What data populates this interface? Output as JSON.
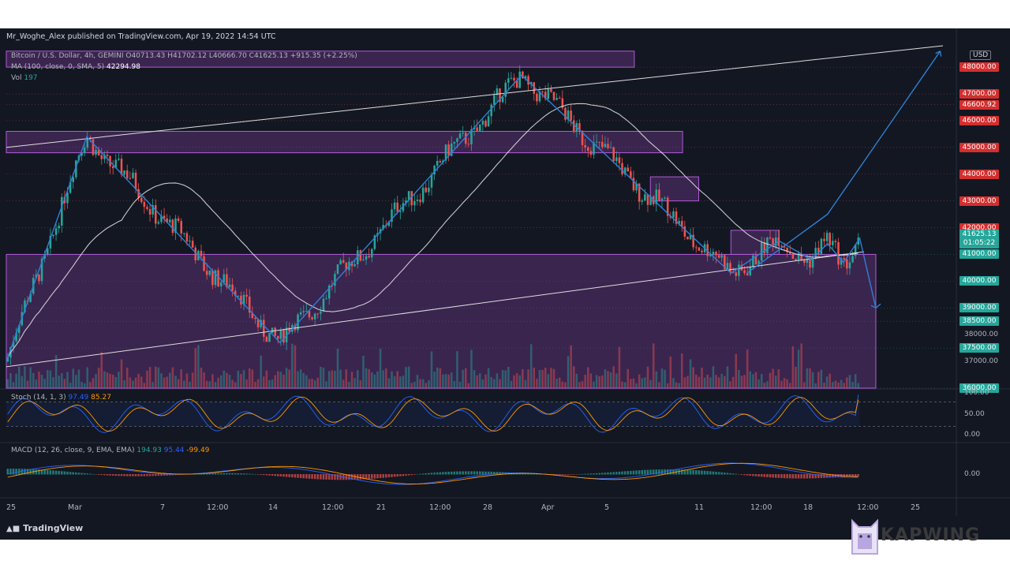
{
  "header": {
    "published": "Mr_Woghe_Alex published on TradingView.com, Apr 19, 2022 14:54 UTC"
  },
  "legend": {
    "symbol": "Bitcoin / U.S. Dollar, 4h, GEMINI",
    "ohlc": "O40713.43 H41702.12 L40666.70 C41625.13 +915.35 (+2.25%)",
    "ma_label": "MA (100, close, 0, SMA, 5)",
    "ma_value": "42294.98",
    "vol_label": "Vol",
    "vol_value": "197"
  },
  "axis": {
    "currency": "USD",
    "current_price": "41625.13",
    "countdown": "01:05:22",
    "price_tags": [
      {
        "text": "48000.00",
        "value": 48000,
        "style": "red"
      },
      {
        "text": "47000.00",
        "value": 47000,
        "style": "red"
      },
      {
        "text": "46600.92",
        "value": 46600.92,
        "style": "red"
      },
      {
        "text": "46000.00",
        "value": 46000,
        "style": "red"
      },
      {
        "text": "45000.00",
        "value": 45000,
        "style": "red"
      },
      {
        "text": "44000.00",
        "value": 44000,
        "style": "red"
      },
      {
        "text": "43000.00",
        "value": 43000,
        "style": "red"
      },
      {
        "text": "42000.00",
        "value": 42000,
        "style": "red"
      },
      {
        "text": "41000.00",
        "value": 41000,
        "style": "green"
      },
      {
        "text": "40000.00",
        "value": 40000,
        "style": "green"
      },
      {
        "text": "39000.00",
        "value": 39000,
        "style": "green"
      },
      {
        "text": "38500.00",
        "value": 38500,
        "style": "green"
      },
      {
        "text": "37500.00",
        "value": 37500,
        "style": "green"
      },
      {
        "text": "36000.00",
        "value": 36000,
        "style": "green"
      }
    ],
    "plain_labels": [
      {
        "text": "38000.00",
        "value": 38000
      },
      {
        "text": "37000.00",
        "value": 37000
      }
    ],
    "time_labels": [
      "25",
      "Mar",
      "7",
      "12:00",
      "14",
      "12:00",
      "21",
      "12:00",
      "28",
      "Apr",
      "5",
      "11",
      "12:00",
      "18",
      "12:00",
      "25"
    ]
  },
  "stoch": {
    "label": "Stoch (14, 1, 3)",
    "k": "97.49",
    "d": "85.27",
    "scale": [
      "100.00",
      "50.00",
      "0.00"
    ]
  },
  "macd": {
    "label": "MACD (12, 26, close, 9, EMA, EMA)",
    "hist": "194.93",
    "macd": "95.44",
    "signal": "-99.49",
    "scale": [
      "0.00"
    ]
  },
  "footer": {
    "logo": "TradingView",
    "watermark": "KAPWING"
  },
  "colors": {
    "background": "#131722",
    "up": "#26a69a",
    "down": "#ef5350",
    "zone": "#8e44ad",
    "zigzag": "#2f7fd4",
    "ma": "#e8e8e8"
  },
  "chart_data": {
    "type": "candlestick",
    "symbol": "Bitcoin / U.S. Dollar",
    "interval": "4h",
    "exchange": "GEMINI",
    "ylim": [
      36000,
      48800
    ],
    "x_range": [
      "Feb 25",
      "Apr 25"
    ],
    "zigzag_path": [
      {
        "x": "Feb 25",
        "y": 37000
      },
      {
        "x": "Mar 2",
        "y": 45400
      },
      {
        "x": "Mar 14",
        "y": 37700
      },
      {
        "x": "Mar 29",
        "y": 47700
      },
      {
        "x": "Apr 11",
        "y": 40300
      },
      {
        "x": "Apr 14",
        "y": 41500
      },
      {
        "x": "Apr 16",
        "y": 40800
      },
      {
        "x": "Apr 17",
        "y": 41400
      },
      {
        "x": "Apr 18",
        "y": 40700
      },
      {
        "x": "Apr 19",
        "y": 41600
      },
      {
        "x": "Apr 20",
        "y": 39000
      }
    ],
    "projection_path": [
      {
        "x": "Apr 12",
        "y": 40300
      },
      {
        "x": "Apr 17",
        "y": 42500
      },
      {
        "x": "Apr 24",
        "y": 48600
      }
    ],
    "supply_zones": [
      {
        "from": "Feb 25",
        "to": "Apr 5",
        "low": 48000,
        "high": 48600
      },
      {
        "from": "Feb 25",
        "to": "Apr 8",
        "low": 44800,
        "high": 45600
      },
      {
        "from": "Apr 6",
        "to": "Apr 9",
        "low": 43000,
        "high": 43900
      },
      {
        "from": "Apr 11",
        "to": "Apr 14",
        "low": 41000,
        "high": 41900
      },
      {
        "from": "Feb 25",
        "to": "Apr 20",
        "low": 36000,
        "high": 41000
      }
    ],
    "ma_100": {
      "last": 42294.98
    },
    "last_close": 41625.13,
    "stoch": {
      "k": 97.49,
      "d": 85.27,
      "range": [
        0,
        100
      ]
    },
    "macd": {
      "hist": 194.93,
      "macd": 95.44,
      "signal": -99.49
    }
  }
}
